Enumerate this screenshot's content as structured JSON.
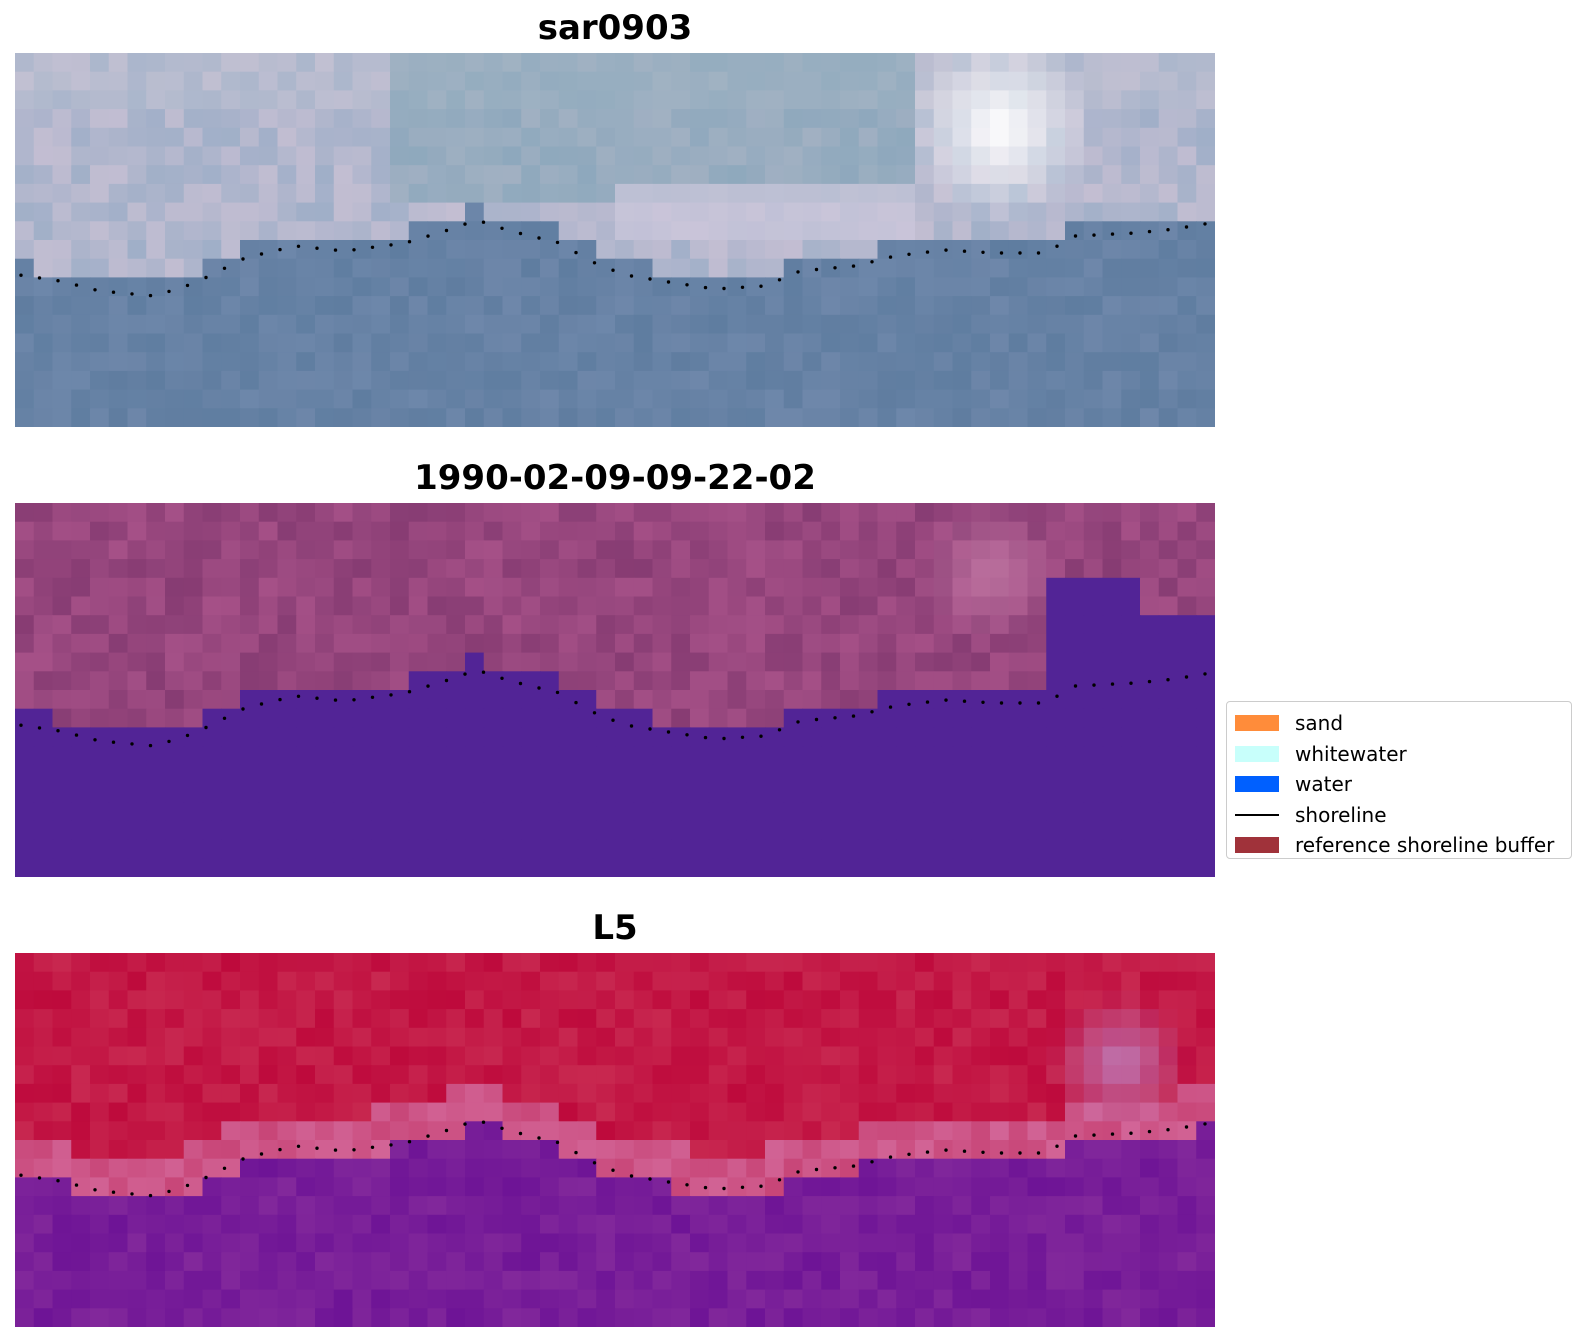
{
  "panels": [
    {
      "title": "sar0903",
      "style": "rgb"
    },
    {
      "title": "1990-02-09-09-22-02",
      "style": "classified"
    },
    {
      "title": "L5",
      "style": "index"
    }
  ],
  "legend": {
    "items": [
      {
        "label": "sand",
        "kind": "patch",
        "color": "#ff8c3a"
      },
      {
        "label": "whitewater",
        "kind": "patch",
        "color": "#c8fffb"
      },
      {
        "label": "water",
        "kind": "patch",
        "color": "#0060ff"
      },
      {
        "label": "shoreline",
        "kind": "line",
        "color": "#000000"
      },
      {
        "label": "reference shoreline buffer",
        "kind": "patch",
        "color": "#a0323a"
      }
    ]
  }
}
